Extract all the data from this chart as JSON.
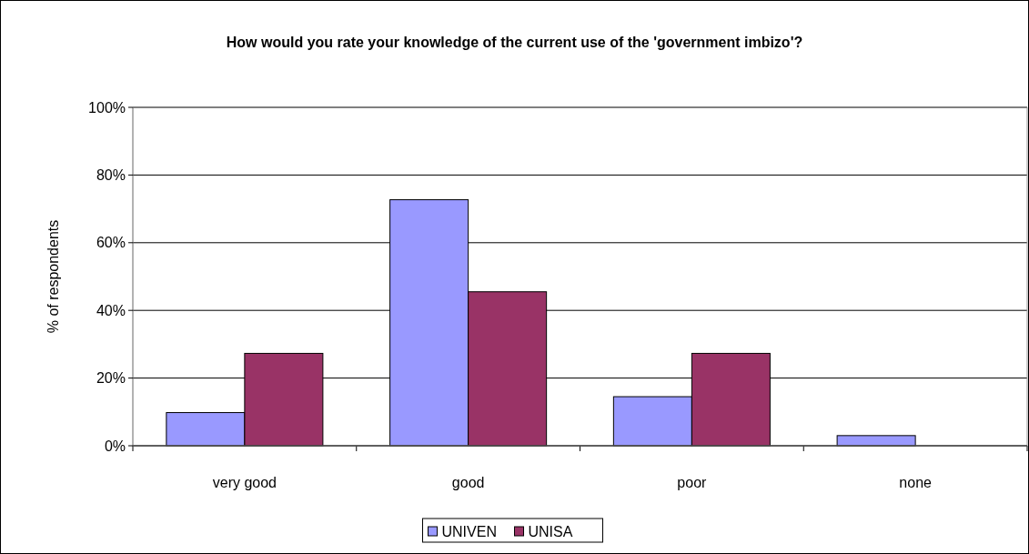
{
  "chart_data": {
    "type": "bar",
    "title": "How would you rate your knowledge of the current use of the 'government imbizo'?",
    "ylabel": "% of respondents",
    "categories": [
      "very good",
      "good",
      "poor",
      "none"
    ],
    "series": [
      {
        "name": "UNIVEN",
        "color": "#9999ff",
        "values": [
          9.8,
          72.7,
          14.5,
          3.0
        ]
      },
      {
        "name": "UNISA",
        "color": "#993366",
        "values": [
          27.3,
          45.5,
          27.3,
          0
        ]
      }
    ],
    "ylim": [
      0,
      100
    ],
    "yticks": [
      {
        "value": 0,
        "label": "0%"
      },
      {
        "value": 20,
        "label": "20%"
      },
      {
        "value": 40,
        "label": "40%"
      },
      {
        "value": 60,
        "label": "60%"
      },
      {
        "value": 80,
        "label": "80%"
      },
      {
        "value": 100,
        "label": "100%"
      }
    ],
    "grid": "y",
    "legend": "bottom"
  }
}
